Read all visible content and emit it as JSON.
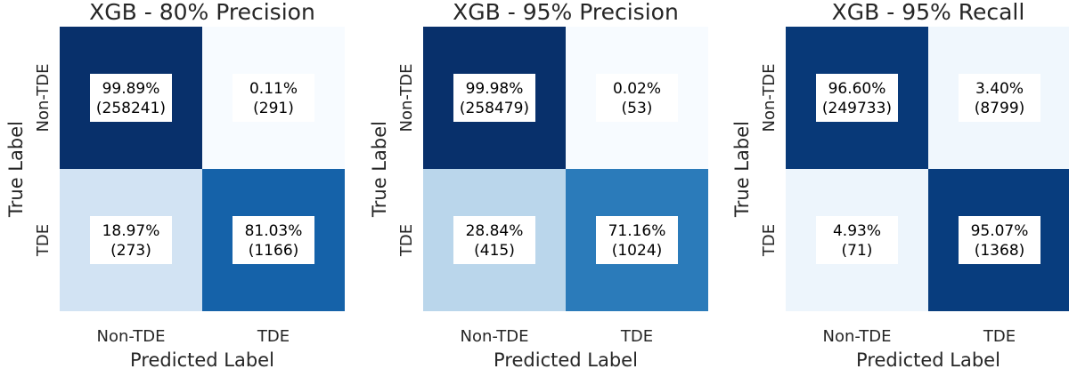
{
  "chart_data": [
    {
      "type": "heatmap",
      "title": "XGB - 80% Precision",
      "xlabel": "Predicted Label",
      "ylabel": "True Label",
      "x_categories": [
        "Non-TDE",
        "TDE"
      ],
      "y_categories": [
        "Non-TDE",
        "TDE"
      ],
      "cells": [
        [
          {
            "percent": "99.89%",
            "count": "(258241)",
            "value": 99.89
          },
          {
            "percent": "0.11%",
            "count": "(291)",
            "value": 0.11
          }
        ],
        [
          {
            "percent": "18.97%",
            "count": "(273)",
            "value": 18.97
          },
          {
            "percent": "81.03%",
            "count": "(1166)",
            "value": 81.03
          }
        ]
      ]
    },
    {
      "type": "heatmap",
      "title": "XGB - 95% Precision",
      "xlabel": "Predicted Label",
      "ylabel": "True Label",
      "x_categories": [
        "Non-TDE",
        "TDE"
      ],
      "y_categories": [
        "Non-TDE",
        "TDE"
      ],
      "cells": [
        [
          {
            "percent": "99.98%",
            "count": "(258479)",
            "value": 99.98
          },
          {
            "percent": "0.02%",
            "count": "(53)",
            "value": 0.02
          }
        ],
        [
          {
            "percent": "28.84%",
            "count": "(415)",
            "value": 28.84
          },
          {
            "percent": "71.16%",
            "count": "(1024)",
            "value": 71.16
          }
        ]
      ]
    },
    {
      "type": "heatmap",
      "title": "XGB - 95% Recall",
      "xlabel": "Predicted Label",
      "ylabel": "True Label",
      "x_categories": [
        "Non-TDE",
        "TDE"
      ],
      "y_categories": [
        "Non-TDE",
        "TDE"
      ],
      "cells": [
        [
          {
            "percent": "96.60%",
            "count": "(249733)",
            "value": 96.6
          },
          {
            "percent": "3.40%",
            "count": "(8799)",
            "value": 3.4
          }
        ],
        [
          {
            "percent": "4.93%",
            "count": "(71)",
            "value": 4.93
          },
          {
            "percent": "95.07%",
            "count": "(1368)",
            "value": 95.07
          }
        ]
      ]
    }
  ],
  "colors": {
    "scale": [
      "#f7fbff",
      "#deebf7",
      "#c6dbef",
      "#9ecae1",
      "#6baed6",
      "#4292c6",
      "#2171b5",
      "#08519c",
      "#08306b"
    ],
    "label_box": "#ffffff",
    "text": "#262626"
  }
}
